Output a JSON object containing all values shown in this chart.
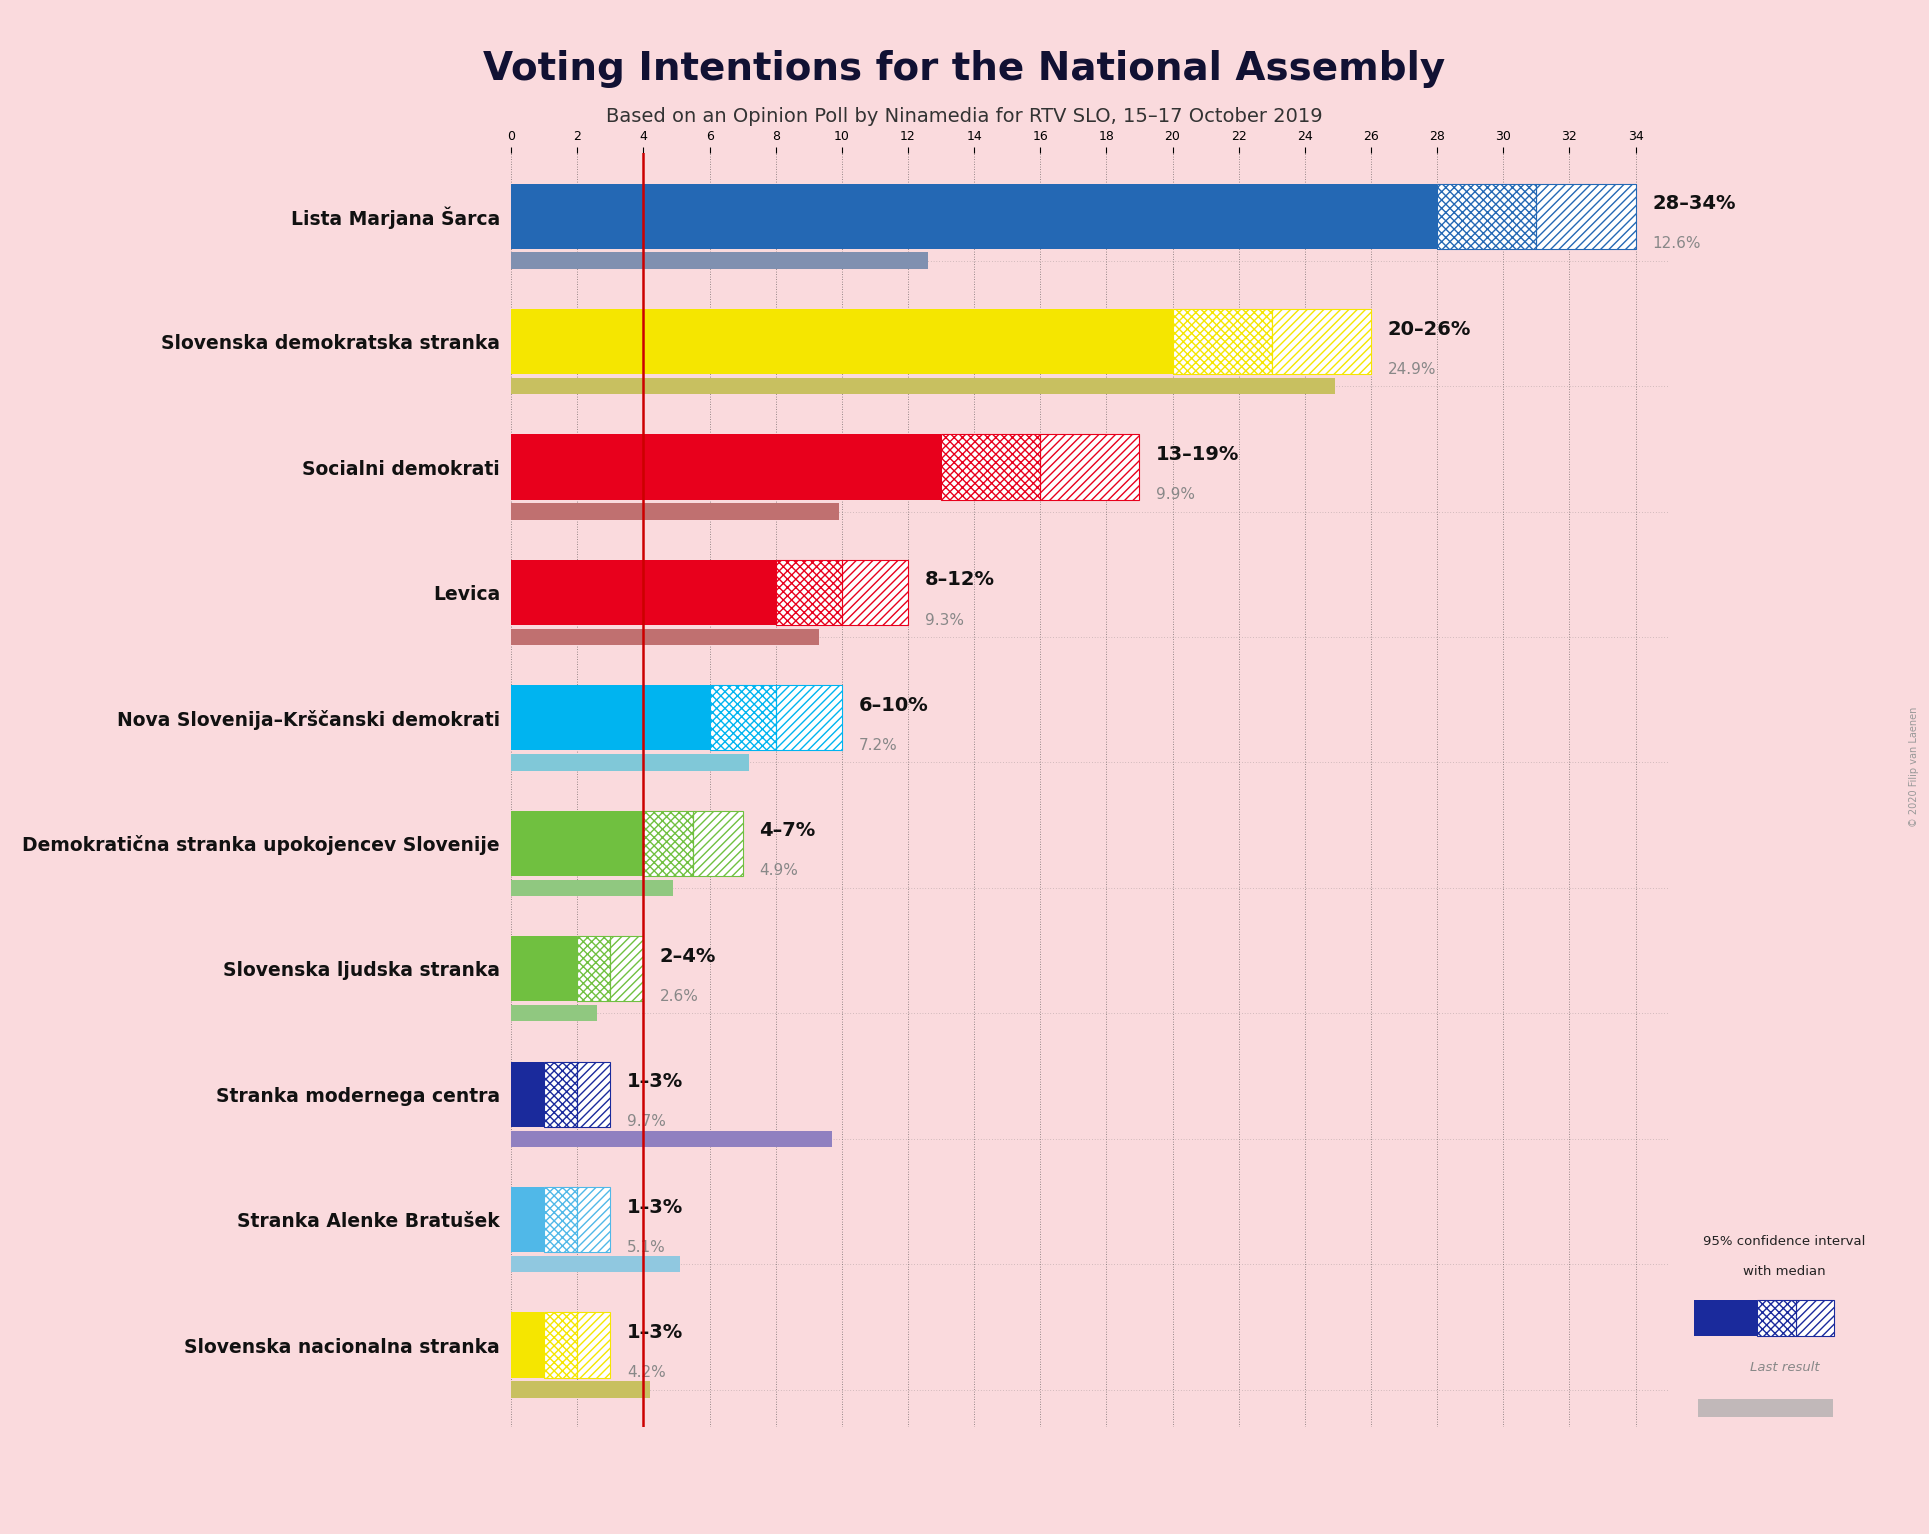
{
  "title": "Voting Intentions for the National Assembly",
  "subtitle": "Based on an Opinion Poll by Ninamedia for RTV SLO, 15–17 October 2019",
  "copyright": "© 2020 Filip van Laenen",
  "background_color": "#fadadd",
  "parties": [
    {
      "name": "Lista Marjana Šarca",
      "color": "#2468b4",
      "ci_low": 28,
      "ci_high": 34,
      "median": 31,
      "last_result": 12.6,
      "last_result_color": "#8090b0",
      "label": "28–34%"
    },
    {
      "name": "Slovenska demokratska stranka",
      "color": "#f5e600",
      "ci_low": 20,
      "ci_high": 26,
      "median": 23,
      "last_result": 24.9,
      "last_result_color": "#c8c060",
      "label": "20–26%"
    },
    {
      "name": "Socialni demokrati",
      "color": "#e8001c",
      "ci_low": 13,
      "ci_high": 19,
      "median": 16,
      "last_result": 9.9,
      "last_result_color": "#c07070",
      "label": "13–19%"
    },
    {
      "name": "Levica",
      "color": "#e8001c",
      "ci_low": 8,
      "ci_high": 12,
      "median": 10,
      "last_result": 9.3,
      "last_result_color": "#c07070",
      "label": "8–12%"
    },
    {
      "name": "Nova Slovenija–Krščanski demokrati",
      "color": "#00b4f0",
      "ci_low": 6,
      "ci_high": 10,
      "median": 8,
      "last_result": 7.2,
      "last_result_color": "#80c8d8",
      "label": "6–10%"
    },
    {
      "name": "Demokratična stranka upokojencev Slovenije",
      "color": "#70c040",
      "ci_low": 4,
      "ci_high": 7,
      "median": 5.5,
      "last_result": 4.9,
      "last_result_color": "#90c880",
      "label": "4–7%"
    },
    {
      "name": "Slovenska ljudska stranka",
      "color": "#70c040",
      "ci_low": 2,
      "ci_high": 4,
      "median": 3,
      "last_result": 2.6,
      "last_result_color": "#90c880",
      "label": "2–4%"
    },
    {
      "name": "Stranka modernega centra",
      "color": "#1a2a9c",
      "ci_low": 1,
      "ci_high": 3,
      "median": 2,
      "last_result": 9.7,
      "last_result_color": "#9080c0",
      "label": "1–3%"
    },
    {
      "name": "Stranka Alenke Bratušek",
      "color": "#50b8e8",
      "ci_low": 1,
      "ci_high": 3,
      "median": 2,
      "last_result": 5.1,
      "last_result_color": "#90c8e0",
      "label": "1–3%"
    },
    {
      "name": "Slovenska nacionalna stranka",
      "color": "#f5e600",
      "ci_low": 1,
      "ci_high": 3,
      "median": 2,
      "last_result": 4.2,
      "last_result_color": "#c8c060",
      "label": "1–3%"
    }
  ],
  "x_max": 35,
  "tick_interval": 2,
  "threshold_line": 4,
  "threshold_color": "#cc0000"
}
